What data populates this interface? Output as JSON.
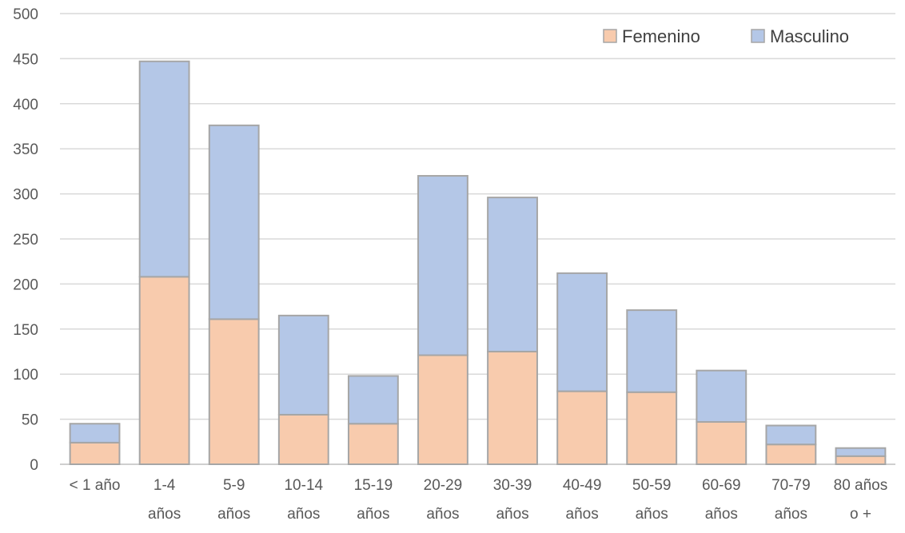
{
  "chart_data": {
    "type": "bar",
    "stacked": true,
    "categories": [
      [
        "< 1 año"
      ],
      [
        "1-4",
        "años"
      ],
      [
        "5-9",
        "años"
      ],
      [
        "10-14",
        "años"
      ],
      [
        "15-19",
        "años"
      ],
      [
        "20-29",
        "años"
      ],
      [
        "30-39",
        "años"
      ],
      [
        "40-49",
        "años"
      ],
      [
        "50-59",
        "años"
      ],
      [
        "60-69",
        "años"
      ],
      [
        "70-79",
        "años"
      ],
      [
        "80 años",
        "o +"
      ]
    ],
    "series": [
      {
        "name": "Femenino",
        "color": "#f8cbad",
        "values": [
          24,
          208,
          161,
          55,
          45,
          121,
          125,
          81,
          80,
          47,
          22,
          9
        ]
      },
      {
        "name": "Masculino",
        "color": "#b4c7e7",
        "values": [
          21,
          239,
          215,
          110,
          53,
          199,
          171,
          131,
          91,
          57,
          21,
          9
        ]
      }
    ],
    "title": "",
    "xlabel": "",
    "ylabel": "",
    "ylim": [
      0,
      500
    ],
    "yticks": [
      "0",
      "50",
      "100",
      "150",
      "200",
      "250",
      "300",
      "350",
      "400",
      "450",
      "500"
    ],
    "grid": true,
    "legend_position": "top-right"
  }
}
